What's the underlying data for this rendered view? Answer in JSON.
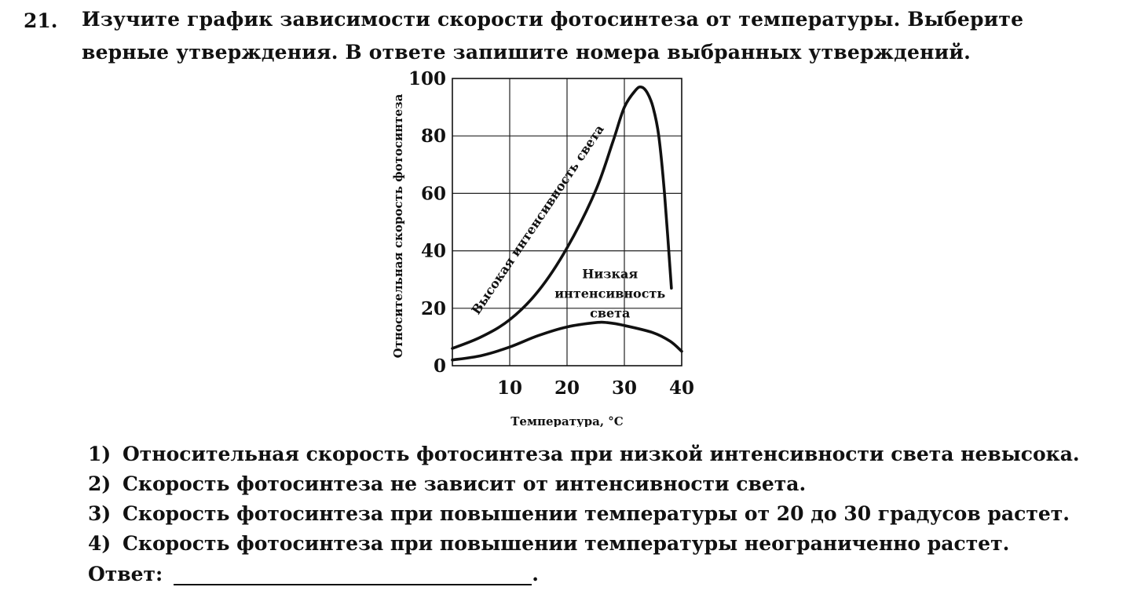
{
  "question": {
    "number": "21.",
    "text": "Изучите график зависимости скорости фотосинтеза от температуры. Выберите верные утверждения. В ответе запишите номера выбранных утверждений."
  },
  "chart_data": {
    "type": "line",
    "xlabel": "Температура, °C",
    "ylabel": "Относительная скорость фотосинтеза",
    "xlim": [
      0,
      40
    ],
    "ylim": [
      0,
      100
    ],
    "x_ticks": [
      10,
      20,
      30,
      40
    ],
    "y_ticks": [
      0,
      20,
      40,
      60,
      80,
      100
    ],
    "grid": true,
    "series": [
      {
        "name": "Высокая интенсивность света",
        "x": [
          0,
          5,
          10,
          15,
          20,
          25,
          28,
          30,
          32,
          33,
          34,
          35,
          36,
          37,
          38.2
        ],
        "y": [
          6,
          10,
          16,
          26,
          41,
          61,
          78,
          90,
          96,
          97,
          95,
          90,
          80,
          60,
          27
        ]
      },
      {
        "name": "Низкая интенсивность света",
        "x": [
          0,
          5,
          10,
          15,
          20,
          25,
          27,
          30,
          35,
          38,
          40
        ],
        "y": [
          2,
          3.5,
          6.5,
          10.5,
          13.5,
          15,
          15,
          14,
          11.5,
          8.5,
          5
        ]
      }
    ]
  },
  "statements": [
    {
      "num": "1)",
      "text": "Относительная скорость фотосинтеза при низкой интенсивности света невысока."
    },
    {
      "num": "2)",
      "text": "Скорость фотосинтеза не зависит от интенсивности света."
    },
    {
      "num": "3)",
      "text": "Скорость фотосинтеза при повышении температуры от 20 до 30 градусов растет."
    },
    {
      "num": "4)",
      "text": "Скорость фотосинтеза при повышении температуры неограниченно растет."
    }
  ],
  "answer": {
    "label": "Ответ:",
    "suffix": "."
  }
}
